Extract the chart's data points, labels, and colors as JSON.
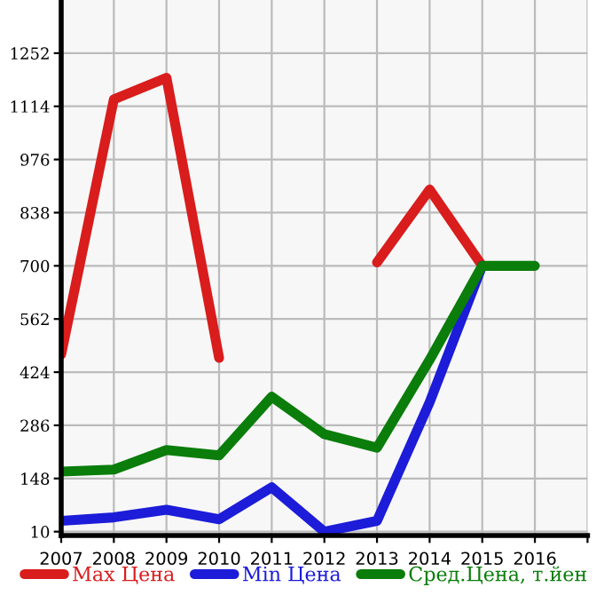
{
  "chart_data": {
    "type": "line",
    "x": [
      2007,
      2008,
      2009,
      2010,
      2011,
      2012,
      2013,
      2014,
      2015,
      2016
    ],
    "series": [
      {
        "name": "Max Цена",
        "color": "#d91c1c",
        "values": [
          470,
          1132,
          1188,
          461,
          null,
          null,
          709,
          898,
          700,
          null
        ]
      },
      {
        "name": "Min Цена",
        "color": "#1c1cd9",
        "values": [
          38,
          47,
          67,
          42,
          125,
          10,
          38,
          346,
          700,
          null
        ]
      },
      {
        "name": "Сред.Цена, т.йен",
        "color": "#0a7d0a",
        "values": [
          166,
          171,
          222,
          208,
          360,
          263,
          228,
          456,
          700,
          700
        ]
      }
    ],
    "xlim": [
      2007,
      2017
    ],
    "xticks": [
      2007,
      2008,
      2009,
      2010,
      2011,
      2012,
      2013,
      2014,
      2015,
      2016,
      {
        "value": 2017,
        "label": null
      }
    ],
    "ylim": [
      0,
      1390
    ],
    "yticks": [
      10,
      148,
      286,
      424,
      562,
      700,
      838,
      976,
      1114,
      1252
    ],
    "grid": true,
    "legend": "bottom",
    "marker": "none",
    "line_style": "solid"
  }
}
